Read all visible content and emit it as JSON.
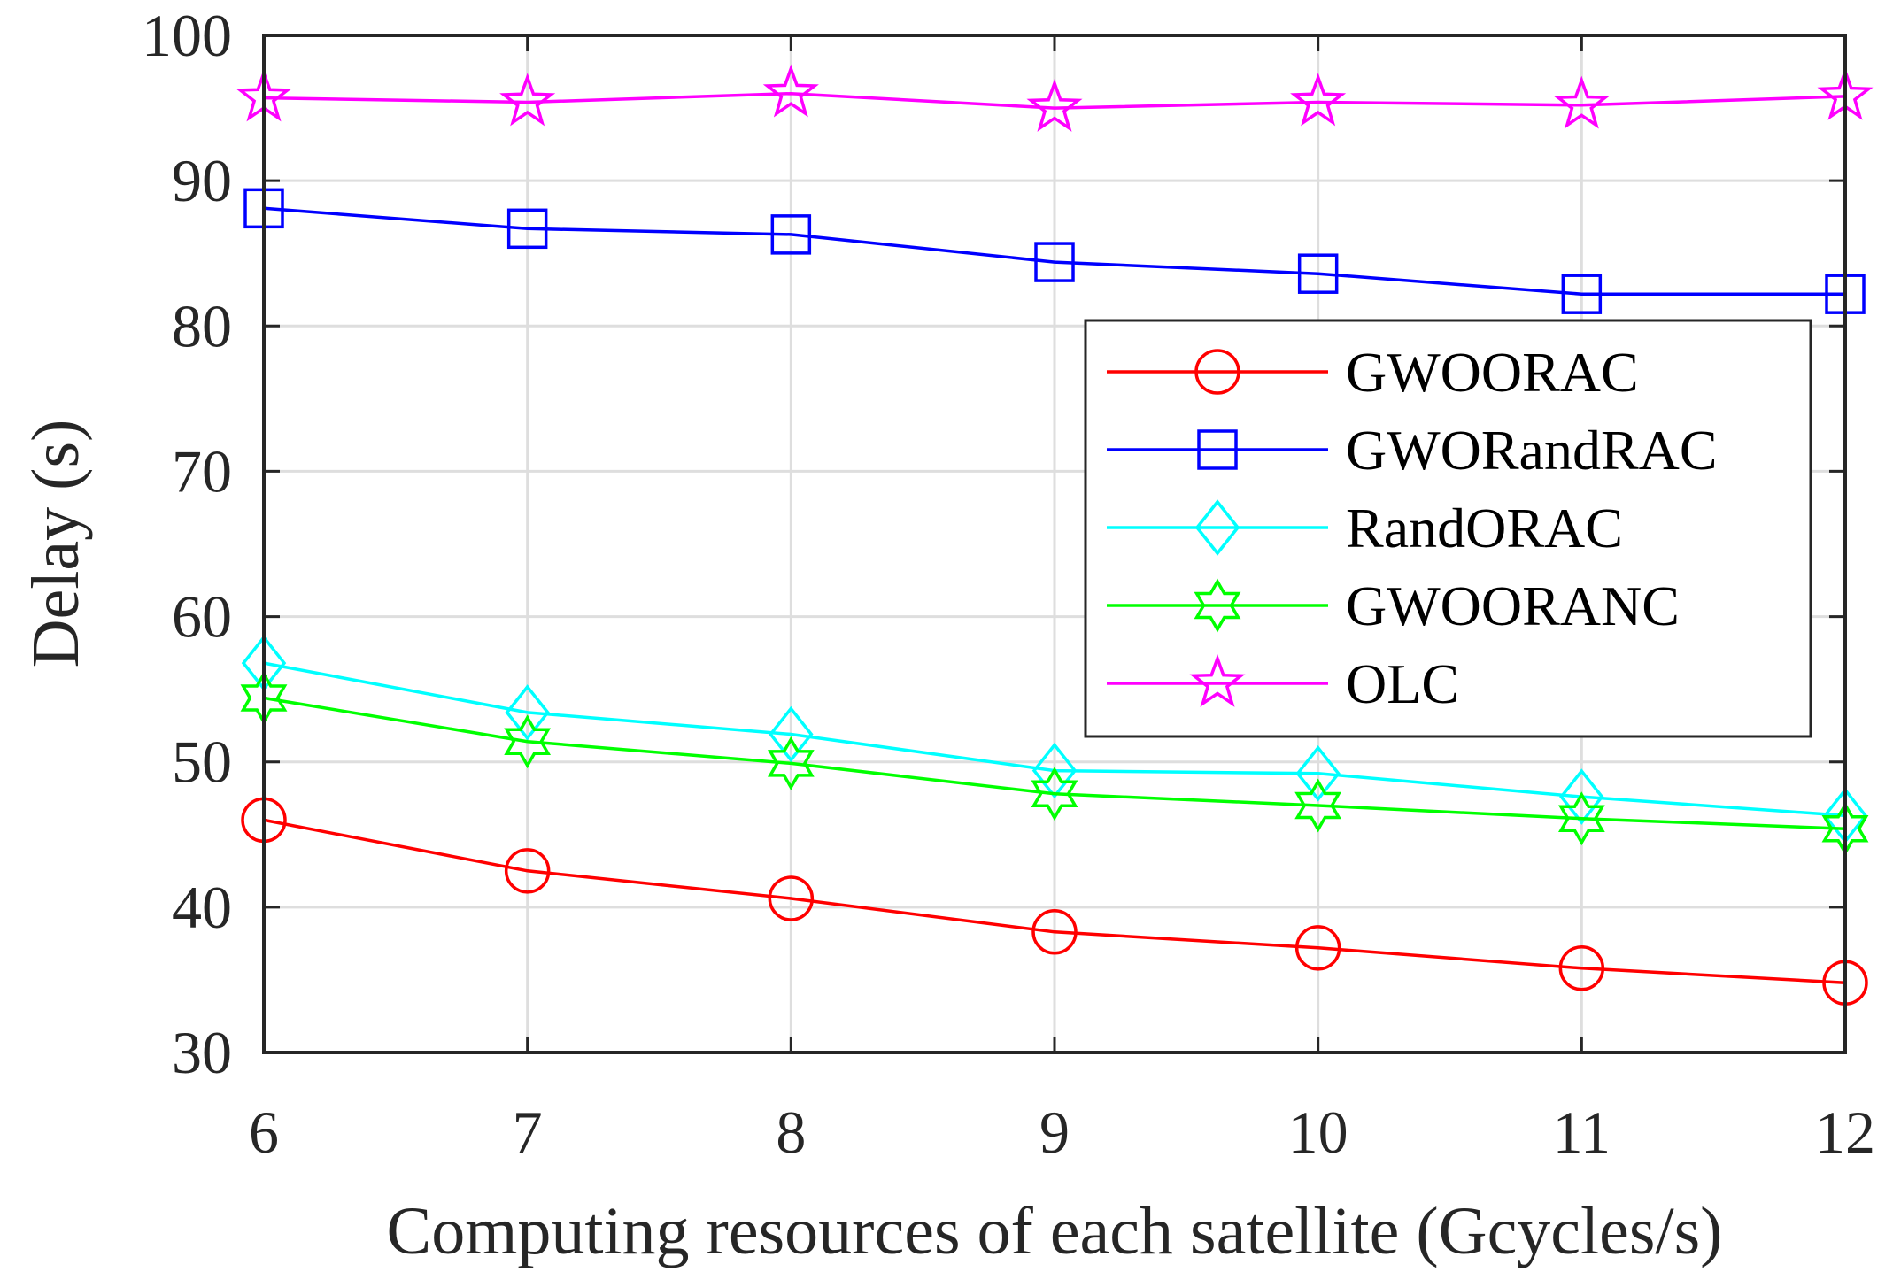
{
  "chart_data": {
    "type": "line",
    "title": "",
    "xlabel": "Computing resources of each satellite (Gcycles/s)",
    "ylabel": "Delay (s)",
    "x": [
      6,
      7,
      8,
      9,
      10,
      11,
      12
    ],
    "xlim": [
      6,
      12
    ],
    "ylim": [
      30,
      100
    ],
    "xticks": [
      "6",
      "7",
      "8",
      "9",
      "10",
      "11",
      "12"
    ],
    "yticks": [
      "30",
      "40",
      "50",
      "60",
      "70",
      "80",
      "90",
      "100"
    ],
    "grid": true,
    "legend_position": "center-right",
    "series": [
      {
        "name": "GWOORAC",
        "color": "#ff0000",
        "marker": "circle",
        "values": [
          46.0,
          42.5,
          40.6,
          38.3,
          37.2,
          35.8,
          34.8
        ]
      },
      {
        "name": "GWORandRAC",
        "color": "#0000ff",
        "marker": "square",
        "values": [
          88.1,
          86.7,
          86.3,
          84.4,
          83.6,
          82.2,
          82.2
        ]
      },
      {
        "name": "RandORAC",
        "color": "#00ffff",
        "marker": "diamond",
        "values": [
          56.8,
          53.4,
          51.9,
          49.4,
          49.2,
          47.6,
          46.3
        ]
      },
      {
        "name": "GWOORANC",
        "color": "#00ff00",
        "marker": "hexagram",
        "values": [
          54.4,
          51.4,
          49.9,
          47.8,
          47.0,
          46.1,
          45.4
        ]
      },
      {
        "name": "OLC",
        "color": "#ff00ff",
        "marker": "pentagram",
        "values": [
          95.7,
          95.4,
          96.0,
          95.0,
          95.4,
          95.2,
          95.8
        ]
      }
    ]
  }
}
